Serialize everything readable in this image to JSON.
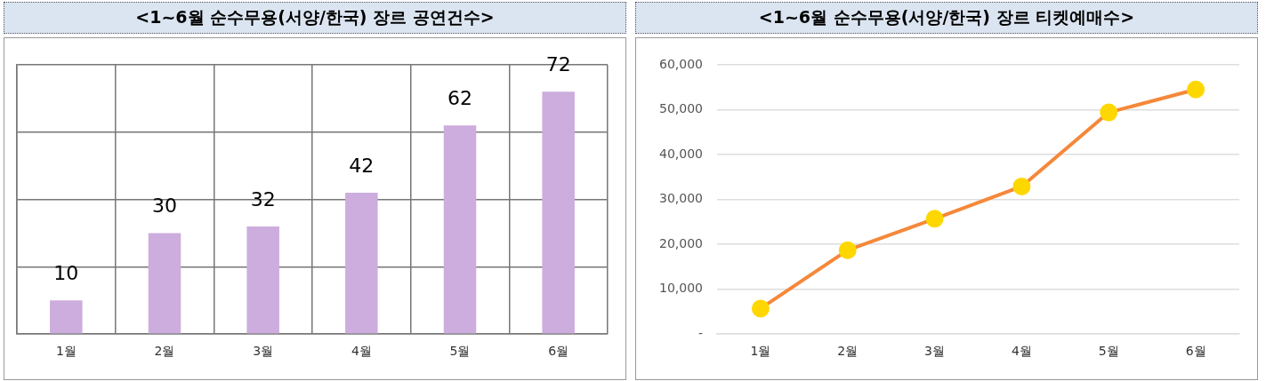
{
  "chart_data": [
    {
      "type": "bar",
      "title": "<1~6월 순수무용(서양/한국) 장르 공연건수>",
      "categories": [
        "1월",
        "2월",
        "3월",
        "4월",
        "5월",
        "6월"
      ],
      "values": [
        10,
        30,
        32,
        42,
        62,
        72
      ],
      "color": "#ccaddd",
      "ylim": [
        0,
        80
      ],
      "yticks": [
        {
          "value": 0,
          "label": null
        },
        {
          "value": 20,
          "label": null
        },
        {
          "value": 40,
          "label": null
        },
        {
          "value": 60,
          "label": null
        },
        {
          "value": 80,
          "label": null
        }
      ],
      "tick_labels": "x",
      "grid": true,
      "data_labels": true,
      "legend": false
    },
    {
      "type": "line",
      "title": "<1~6월 순수무용(서양/한국) 장르 티켓예매수>",
      "categories": [
        "1월",
        "2월",
        "3월",
        "4월",
        "5월",
        "6월"
      ],
      "series": [
        {
          "color": "#f5883a",
          "colors": [
            "#ffd700",
            "#ffd700",
            "#ffd700",
            "#ffd700",
            "#ffd700",
            "#ffd700"
          ],
          "values": [
            5700,
            18700,
            25700,
            32900,
            49400,
            54500
          ]
        }
      ],
      "marker": "circle",
      "ylim": [
        0,
        60000
      ],
      "yticks": [
        {
          "value": 0,
          "label": "-"
        },
        {
          "value": 10000,
          "label": "10,000"
        },
        {
          "value": 20000,
          "label": "20,000"
        },
        {
          "value": 30000,
          "label": "30,000"
        },
        {
          "value": 40000,
          "label": "40,000"
        },
        {
          "value": 50000,
          "label": "50,000"
        },
        {
          "value": 60000,
          "label": "60,000"
        }
      ],
      "grid": "y",
      "legend": false
    }
  ]
}
